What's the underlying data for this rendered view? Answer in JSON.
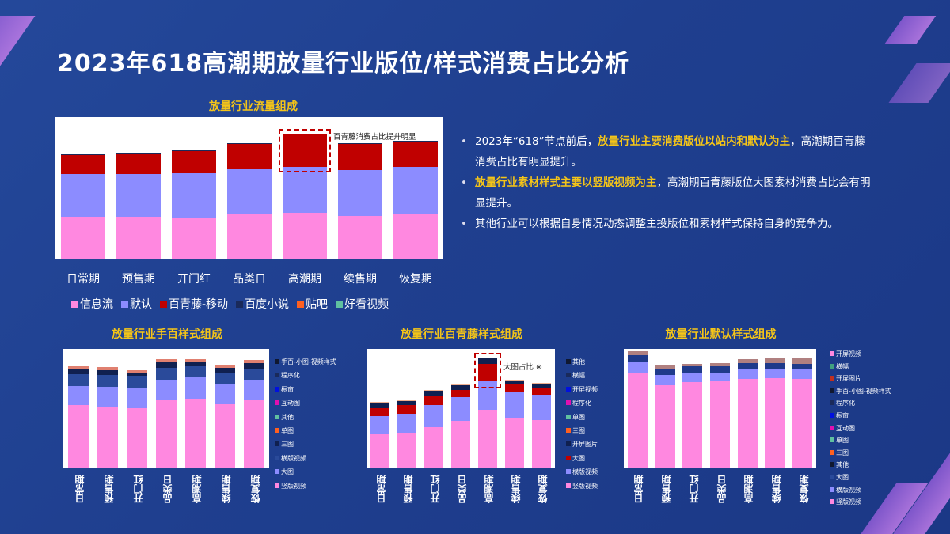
{
  "title": "2023年618高潮期放量行业版位/样式消费占比分析",
  "bullets": [
    {
      "parts": [
        {
          "t": "2023年“618”节点前后，",
          "h": false
        },
        {
          "t": "放量行业主要消费版位以站内和默认为主",
          "h": true
        },
        {
          "t": "，高潮期百青藤消费占比有明显提升。",
          "h": false
        }
      ]
    },
    {
      "parts": [
        {
          "t": "放量行业素材样式主要以竖版视频为主",
          "h": true
        },
        {
          "t": "，高潮期百青藤版位大图素材消费占比会有明显提升。",
          "h": false
        }
      ]
    },
    {
      "parts": [
        {
          "t": "其他行业可以根据自身情况动态调整主投版位和素材样式保持自身的竞争力。",
          "h": false
        }
      ]
    }
  ],
  "chart_data": [
    {
      "type": "bar",
      "stacked": true,
      "title": "放量行业流量组成",
      "categories": [
        "日常期",
        "预售期",
        "开门红",
        "品类日",
        "高潮期",
        "续售期",
        "恢复期"
      ],
      "ylim": [
        0,
        180
      ],
      "legend": "bottom",
      "annotation": "百青藤消费占比提升明显",
      "highlight": "高潮期",
      "series": [
        {
          "name": "信息流",
          "color": "#ff88e0",
          "values": [
            53,
            53,
            52,
            57,
            58,
            54,
            57
          ]
        },
        {
          "name": "默认",
          "color": "#8c8cff",
          "values": [
            55,
            55,
            57,
            58,
            59,
            59,
            60
          ]
        },
        {
          "name": "百青藤-移动",
          "color": "#c00000",
          "values": [
            24,
            25,
            28,
            31,
            41,
            33,
            32
          ]
        },
        {
          "name": "百度小说",
          "color": "#1a2a5a",
          "values": [
            1,
            1,
            1,
            1,
            1,
            1,
            1
          ]
        },
        {
          "name": "贴吧",
          "color": "#ff6020",
          "values": [
            0,
            0,
            0,
            0,
            0,
            0,
            0
          ]
        },
        {
          "name": "好看视频",
          "color": "#60c0a0",
          "values": [
            0,
            0,
            0,
            0,
            0,
            0,
            0
          ]
        }
      ]
    },
    {
      "type": "bar",
      "stacked": true,
      "title": "放量行业手百样式组成",
      "categories": [
        "日常期",
        "预售期",
        "开门红",
        "品类日",
        "高潮期",
        "续售期",
        "恢复期"
      ],
      "ylim": [
        0,
        150
      ],
      "legend": "right",
      "legend_entries": [
        {
          "name": "手百-小图-视频样式",
          "color": "#101830"
        },
        {
          "name": "程序化",
          "color": "#1a2a5a"
        },
        {
          "name": "橱窗",
          "color": "#0010e0"
        },
        {
          "name": "互动图",
          "color": "#e010b0"
        },
        {
          "name": "其他",
          "color": "#60c0a0"
        },
        {
          "name": "单图",
          "color": "#ff6020"
        },
        {
          "name": "三图",
          "color": "#102050"
        },
        {
          "name": "横版视频",
          "color": "#2a4a9a"
        },
        {
          "name": "大图",
          "color": "#8c8cff"
        },
        {
          "name": "竖版视频",
          "color": "#ff88e0"
        }
      ],
      "series": [
        {
          "name": "竖版视频",
          "color": "#ff88e0",
          "values": [
            79,
            77,
            76,
            85,
            87,
            80,
            86
          ]
        },
        {
          "name": "大图",
          "color": "#8c8cff",
          "values": [
            24,
            25,
            25,
            26,
            27,
            26,
            25
          ]
        },
        {
          "name": "横版视频",
          "color": "#2a4a9a",
          "values": [
            15,
            15,
            15,
            15,
            14,
            14,
            14
          ]
        },
        {
          "name": "三图",
          "color": "#102050",
          "values": [
            6,
            6,
            4,
            7,
            6,
            6,
            7
          ]
        },
        {
          "name": "单图",
          "color": "#e08070",
          "values": [
            4,
            4,
            3,
            4,
            3,
            4,
            4
          ]
        }
      ]
    },
    {
      "type": "bar",
      "stacked": true,
      "title": "放量行业百青藤样式组成",
      "categories": [
        "日常期",
        "预售期",
        "开门红",
        "品类日",
        "高潮期",
        "续售期",
        "恢复期"
      ],
      "ylim": [
        0,
        150
      ],
      "legend": "right",
      "annotation": "大图占比",
      "highlight": "高潮期",
      "legend_entries": [
        {
          "name": "其他",
          "color": "#101830"
        },
        {
          "name": "横幅",
          "color": "#1a2a5a"
        },
        {
          "name": "开屏视频",
          "color": "#0010e0"
        },
        {
          "name": "程序化",
          "color": "#e010b0"
        },
        {
          "name": "单图",
          "color": "#60c0a0"
        },
        {
          "name": "三图",
          "color": "#ff6020"
        },
        {
          "name": "开屏图片",
          "color": "#102050"
        },
        {
          "name": "大图",
          "color": "#c00000"
        },
        {
          "name": "横版视频",
          "color": "#8c8cff"
        },
        {
          "name": "竖版视频",
          "color": "#ff88e0"
        }
      ],
      "series": [
        {
          "name": "竖版视频",
          "color": "#ff88e0",
          "values": [
            42,
            44,
            51,
            59,
            73,
            62,
            60
          ]
        },
        {
          "name": "横版视频",
          "color": "#8c8cff",
          "values": [
            23,
            24,
            28,
            30,
            37,
            33,
            32
          ]
        },
        {
          "name": "大图",
          "color": "#c00000",
          "values": [
            10,
            11,
            12,
            9,
            21,
            10,
            9
          ]
        },
        {
          "name": "开屏图片",
          "color": "#102050",
          "values": [
            6,
            5,
            6,
            6,
            7,
            5,
            5
          ]
        },
        {
          "name": "三图",
          "color": "#f0b090",
          "values": [
            2,
            1,
            1,
            1,
            1,
            1,
            1
          ]
        }
      ]
    },
    {
      "type": "bar",
      "stacked": true,
      "title": "放量行业默认样式组成",
      "categories": [
        "日常期",
        "预售期",
        "开门红",
        "品类日",
        "高潮期",
        "续售期",
        "恢复期"
      ],
      "ylim": [
        0,
        135
      ],
      "legend": "right",
      "legend_entries": [
        {
          "name": "开屏视频",
          "color": "#ff88e0"
        },
        {
          "name": "横幅",
          "color": "#40a080"
        },
        {
          "name": "开屏图片",
          "color": "#c03020"
        },
        {
          "name": "手百-小图-视频样式",
          "color": "#101830"
        },
        {
          "name": "程序化",
          "color": "#1a2a5a"
        },
        {
          "name": "橱窗",
          "color": "#0010e0"
        },
        {
          "name": "互动图",
          "color": "#e010b0"
        },
        {
          "name": "单图",
          "color": "#60c0a0"
        },
        {
          "name": "三图",
          "color": "#ff6020"
        },
        {
          "name": "其他",
          "color": "#101830"
        },
        {
          "name": "大图",
          "color": "#2a4a9a"
        },
        {
          "name": "横版视频",
          "color": "#8c8cff"
        },
        {
          "name": "竖版视频",
          "color": "#ff88e0"
        }
      ],
      "series": [
        {
          "name": "竖版视频",
          "color": "#ff88e0",
          "values": [
            108,
            94,
            97,
            98,
            101,
            102,
            101
          ]
        },
        {
          "name": "横版视频",
          "color": "#8c8cff",
          "values": [
            12,
            11,
            11,
            10,
            11,
            10,
            11
          ]
        },
        {
          "name": "其他",
          "color": "#1f3a8a",
          "values": [
            8,
            7,
            7,
            7,
            7,
            7,
            6
          ]
        },
        {
          "name": "三图",
          "color": "#b08080",
          "values": [
            4,
            5,
            3,
            4,
            4,
            5,
            6
          ]
        }
      ]
    }
  ]
}
